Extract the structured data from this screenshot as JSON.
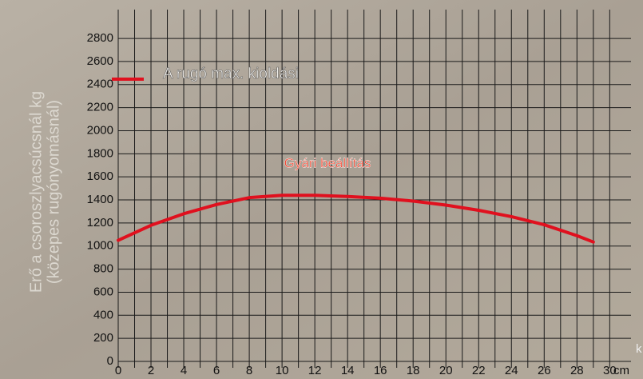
{
  "chart_data": {
    "type": "line",
    "ylabel": [
      "Erő a csoroszlyacsúcsnál kg",
      "(közepes rugónyomásnál)"
    ],
    "x_unit": "cm",
    "corner_text": "k",
    "annotation": "Gyári beállítás",
    "legend_position": "upper left",
    "x": [
      0,
      2,
      4,
      6,
      8,
      10,
      12,
      14,
      16,
      18,
      20,
      22,
      24,
      26,
      28,
      29
    ],
    "series": [
      {
        "name": "A rugó max. kioldási",
        "color": "#e0101e",
        "values": [
          1050,
          1180,
          1280,
          1360,
          1420,
          1440,
          1440,
          1430,
          1415,
          1390,
          1355,
          1310,
          1255,
          1185,
          1090,
          1035
        ]
      }
    ],
    "xlim": [
      0,
      31.3
    ],
    "ylim": [
      0,
      3050
    ],
    "xticks": [
      0,
      2,
      4,
      6,
      8,
      10,
      12,
      14,
      16,
      18,
      20,
      22,
      24,
      26,
      28,
      30
    ],
    "x_minor_ticks": [
      1,
      3,
      5,
      7,
      9,
      11,
      13,
      15,
      17,
      19,
      21,
      23,
      25,
      27,
      29
    ],
    "yticks": [
      0,
      200,
      400,
      600,
      800,
      1000,
      1200,
      1400,
      1600,
      1800,
      2000,
      2200,
      2400,
      2600,
      2800
    ],
    "grid": true
  }
}
